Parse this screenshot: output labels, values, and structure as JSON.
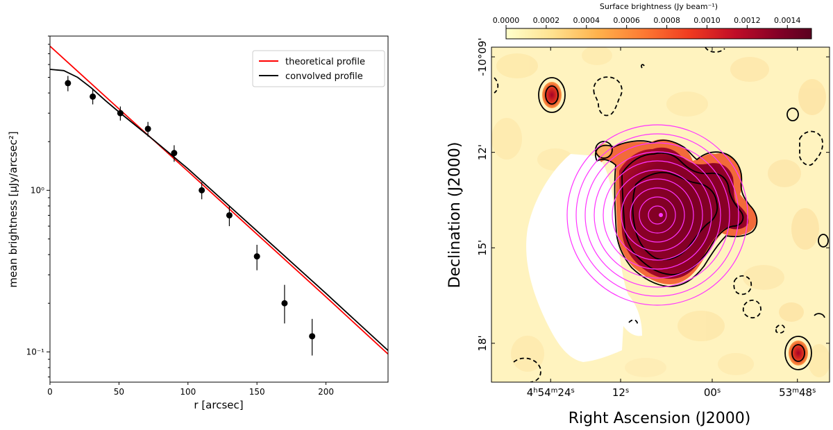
{
  "chart_data": [
    {
      "type": "scatter",
      "xlabel": "r [arcsec]",
      "ylabel": "mean brightness [μJy/arcsec²]",
      "xlim": [
        0,
        245
      ],
      "ylim": [
        0.065,
        9.0
      ],
      "yscale": "log",
      "xticks": [
        "0",
        "50",
        "100",
        "150",
        "200"
      ],
      "xtick_values": [
        0,
        50,
        100,
        150,
        200
      ],
      "yticks": [
        "10⁻¹",
        "10⁰"
      ],
      "ytick_values": [
        0.1,
        1.0
      ],
      "legend_position": "top-right",
      "points": {
        "x": [
          13,
          31,
          51,
          71,
          90,
          110,
          130,
          150,
          170,
          190
        ],
        "y": [
          4.6,
          3.8,
          3.0,
          2.4,
          1.7,
          1.0,
          0.7,
          0.39,
          0.2,
          0.125
        ],
        "err_low": [
          0.5,
          0.4,
          0.3,
          0.25,
          0.2,
          0.12,
          0.1,
          0.07,
          0.05,
          0.03
        ],
        "err_high": [
          0.5,
          0.4,
          0.3,
          0.25,
          0.2,
          0.12,
          0.1,
          0.07,
          0.06,
          0.035
        ]
      },
      "series": [
        {
          "name": "theoretical profile",
          "color": "#ff0000",
          "x": [
            0,
            50,
            100,
            150,
            200,
            245
          ],
          "y": [
            7.8,
            3.19,
            1.31,
            0.535,
            0.219,
            0.097
          ]
        },
        {
          "name": "convolved profile",
          "color": "#000000",
          "x": [
            0,
            10,
            20,
            30,
            40,
            50,
            75,
            100,
            150,
            200,
            245
          ],
          "y": [
            5.6,
            5.5,
            5.0,
            4.3,
            3.6,
            3.05,
            2.05,
            1.36,
            0.56,
            0.23,
            0.102
          ]
        }
      ]
    },
    {
      "type": "heatmap",
      "xlabel": "Right Ascension (J2000)",
      "ylabel": "Declination (J2000)",
      "xticks": [
        "4h54m24s",
        "12s",
        "00s",
        "53m48s"
      ],
      "xtick_fraction": [
        0.175,
        0.382,
        0.653,
        0.905
      ],
      "yticks": [
        "-10°09'",
        "12'",
        "15'",
        "18'"
      ],
      "ytick_fraction": [
        0.0,
        0.285,
        0.57,
        0.855
      ],
      "colorbar": {
        "label": "Surface brightness (Jy beam⁻¹)",
        "ticks": [
          "0.0000",
          "0.0002",
          "0.0004",
          "0.0006",
          "0.0008",
          "0.0010",
          "0.0012",
          "0.0014"
        ],
        "values": [
          0,
          0.0002,
          0.0004,
          0.0006,
          0.0008,
          0.001,
          0.0012,
          0.0014
        ],
        "range": [
          0,
          0.00152
        ],
        "colormap": [
          "#ffffcc",
          "#fee290",
          "#feb24c",
          "#fd7a33",
          "#f03b20",
          "#c00d28",
          "#800026",
          "#5a0020"
        ]
      },
      "annulus_count": 10,
      "annulus_color": "#ff33ff"
    }
  ]
}
